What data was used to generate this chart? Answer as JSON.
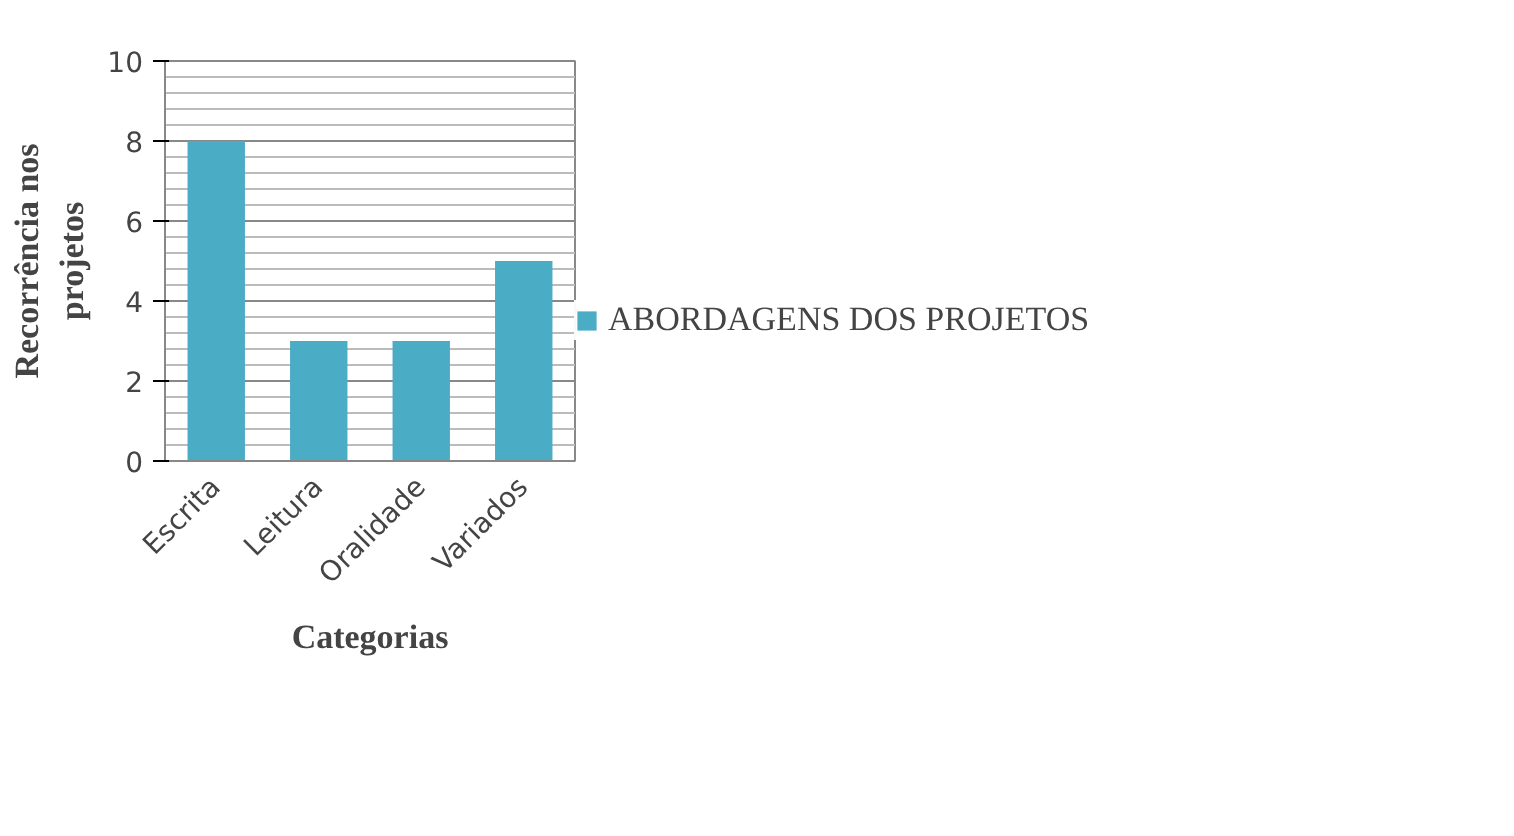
{
  "chart_data": {
    "type": "bar",
    "xlabel": "Categorias",
    "ylabel": "Recorrência nos\nprojetos",
    "categories": [
      "Escrita",
      "Leitura",
      "Oralidade",
      "Variados"
    ],
    "series": [
      {
        "name": "ABORDAGENS DOS PROJETOS",
        "color": "#4bacc6",
        "values": [
          8,
          3,
          3,
          5
        ]
      }
    ],
    "ylim": [
      0,
      10
    ],
    "yticks": [
      0,
      2,
      4,
      6,
      8,
      10
    ],
    "grid": "y",
    "legend": "right"
  }
}
